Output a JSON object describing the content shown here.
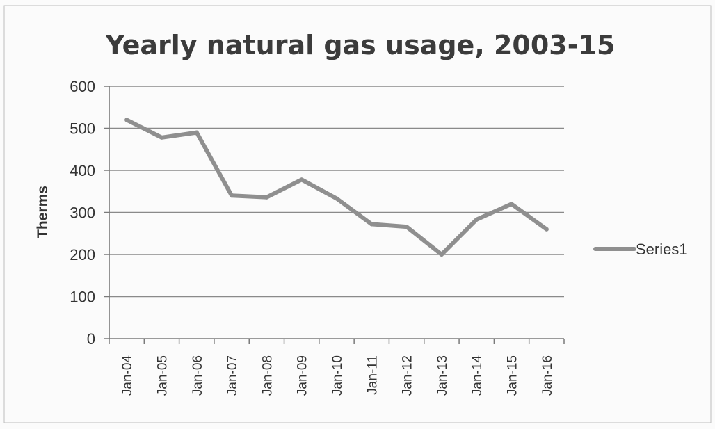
{
  "chart_data": {
    "type": "line",
    "title": "Yearly natural gas usage, 2003-15",
    "xlabel": "",
    "ylabel": "Therms",
    "ylim": [
      0,
      600
    ],
    "yticks": [
      "0",
      "100",
      "200",
      "300",
      "400",
      "500",
      "600"
    ],
    "grid": true,
    "legend_position": "right",
    "categories": [
      "Jan-04",
      "Jan-05",
      "Jan-06",
      "Jan-07",
      "Jan-08",
      "Jan-09",
      "Jan-10",
      "Jan-11",
      "Jan-12",
      "Jan-13",
      "Jan-14",
      "Jan-15",
      "Jan-16"
    ],
    "series": [
      {
        "name": "Series1",
        "color": "#8f8f8f",
        "values": [
          520,
          478,
          490,
          340,
          336,
          378,
          333,
          272,
          266,
          200,
          283,
          320,
          260
        ]
      }
    ]
  }
}
